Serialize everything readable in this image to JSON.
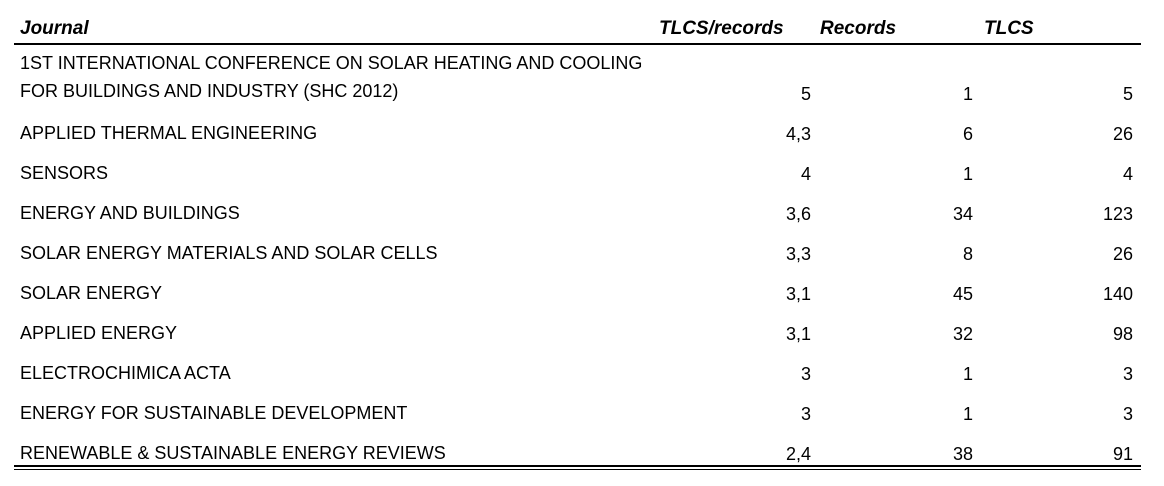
{
  "headers": {
    "journal": "Journal",
    "tlcs_per_records": "TLCS/records",
    "records": "Records",
    "tlcs": "TLCS"
  },
  "rows": [
    {
      "journal": "1ST INTERNATIONAL CONFERENCE ON SOLAR HEATING AND COOLING\nFOR BUILDINGS AND INDUSTRY (SHC 2012)",
      "tlcs_per_records": "5",
      "records": "1",
      "tlcs": "5"
    },
    {
      "journal": "APPLIED THERMAL ENGINEERING",
      "tlcs_per_records": "4,3",
      "records": "6",
      "tlcs": "26"
    },
    {
      "journal": "SENSORS",
      "tlcs_per_records": "4",
      "records": "1",
      "tlcs": "4"
    },
    {
      "journal": "ENERGY AND BUILDINGS",
      "tlcs_per_records": "3,6",
      "records": "34",
      "tlcs": "123"
    },
    {
      "journal": "SOLAR ENERGY MATERIALS AND SOLAR CELLS",
      "tlcs_per_records": "3,3",
      "records": "8",
      "tlcs": "26"
    },
    {
      "journal": "SOLAR ENERGY",
      "tlcs_per_records": "3,1",
      "records": "45",
      "tlcs": "140"
    },
    {
      "journal": "APPLIED ENERGY",
      "tlcs_per_records": "3,1",
      "records": "32",
      "tlcs": "98"
    },
    {
      "journal": "ELECTROCHIMICA ACTA",
      "tlcs_per_records": "3",
      "records": "1",
      "tlcs": "3"
    },
    {
      "journal": "ENERGY FOR SUSTAINABLE DEVELOPMENT",
      "tlcs_per_records": "3",
      "records": "1",
      "tlcs": "3"
    },
    {
      "journal": "RENEWABLE & SUSTAINABLE ENERGY REVIEWS",
      "tlcs_per_records": "2,4",
      "records": "38",
      "tlcs": "91"
    }
  ]
}
